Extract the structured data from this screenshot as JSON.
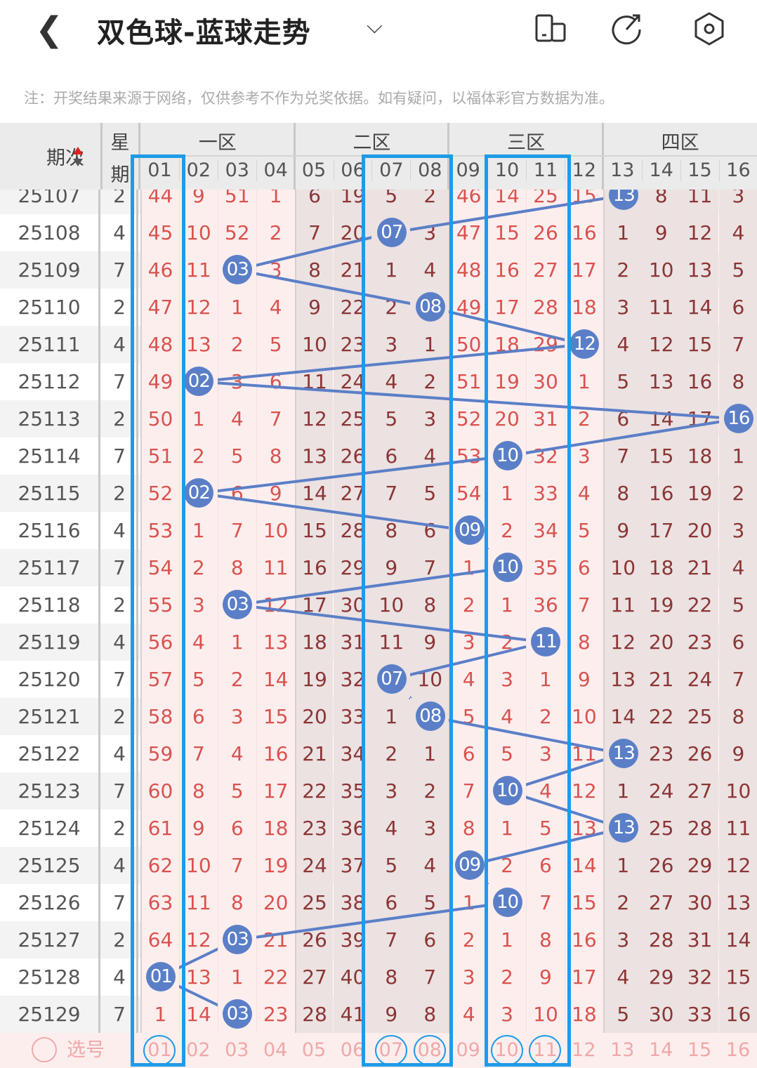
{
  "header": {
    "title": "双色球-蓝球走势",
    "note": "注：开奖结果来源于网络，仅供参考不作为兑奖依据。如有疑问，以福体彩官方数据为准。",
    "icons": [
      "back-icon",
      "chevron-down-icon",
      "phone-layout-icon",
      "share-icon",
      "settings-icon"
    ]
  },
  "table": {
    "period_label": "期次",
    "weekday_label_1": "星",
    "weekday_label_2": "期",
    "zones": [
      "一区",
      "二区",
      "三区",
      "四区"
    ],
    "numbers": [
      "01",
      "02",
      "03",
      "04",
      "05",
      "06",
      "07",
      "08",
      "09",
      "10",
      "11",
      "12",
      "13",
      "14",
      "15",
      "16"
    ],
    "rows": [
      {
        "period": "25107",
        "weekday": "2",
        "values": [
          44,
          9,
          51,
          1,
          6,
          19,
          5,
          2,
          46,
          14,
          25,
          15,
          "13",
          8,
          11,
          3
        ]
      },
      {
        "period": "25108",
        "weekday": "4",
        "values": [
          45,
          10,
          52,
          2,
          7,
          20,
          "07",
          3,
          47,
          15,
          26,
          16,
          1,
          9,
          12,
          4
        ]
      },
      {
        "period": "25109",
        "weekday": "7",
        "values": [
          46,
          11,
          "03",
          3,
          8,
          21,
          1,
          4,
          48,
          16,
          27,
          17,
          2,
          10,
          13,
          5
        ]
      },
      {
        "period": "25110",
        "weekday": "2",
        "values": [
          47,
          12,
          1,
          4,
          9,
          22,
          2,
          "08",
          49,
          17,
          28,
          18,
          3,
          11,
          14,
          6
        ]
      },
      {
        "period": "25111",
        "weekday": "4",
        "values": [
          48,
          13,
          2,
          5,
          10,
          23,
          3,
          1,
          50,
          18,
          29,
          "12",
          4,
          12,
          15,
          7
        ]
      },
      {
        "period": "25112",
        "weekday": "7",
        "values": [
          49,
          "02",
          3,
          6,
          11,
          24,
          4,
          2,
          51,
          19,
          30,
          1,
          5,
          13,
          16,
          8
        ]
      },
      {
        "period": "25113",
        "weekday": "2",
        "values": [
          50,
          1,
          4,
          7,
          12,
          25,
          5,
          3,
          52,
          20,
          31,
          2,
          6,
          14,
          17,
          "16"
        ]
      },
      {
        "period": "25114",
        "weekday": "7",
        "values": [
          51,
          2,
          5,
          8,
          13,
          26,
          6,
          4,
          53,
          "10",
          32,
          3,
          7,
          15,
          18,
          1
        ]
      },
      {
        "period": "25115",
        "weekday": "2",
        "values": [
          52,
          "02",
          6,
          9,
          14,
          27,
          7,
          5,
          54,
          1,
          33,
          4,
          8,
          16,
          19,
          2
        ]
      },
      {
        "period": "25116",
        "weekday": "4",
        "values": [
          53,
          1,
          7,
          10,
          15,
          28,
          8,
          6,
          "09",
          2,
          34,
          5,
          9,
          17,
          20,
          3
        ]
      },
      {
        "period": "25117",
        "weekday": "7",
        "values": [
          54,
          2,
          8,
          11,
          16,
          29,
          9,
          7,
          1,
          "10",
          35,
          6,
          10,
          18,
          21,
          4
        ]
      },
      {
        "period": "25118",
        "weekday": "2",
        "values": [
          55,
          3,
          "03",
          12,
          17,
          30,
          10,
          8,
          2,
          1,
          36,
          7,
          11,
          19,
          22,
          5
        ]
      },
      {
        "period": "25119",
        "weekday": "4",
        "values": [
          56,
          4,
          1,
          13,
          18,
          31,
          11,
          9,
          3,
          2,
          "11",
          8,
          12,
          20,
          23,
          6
        ]
      },
      {
        "period": "25120",
        "weekday": "7",
        "values": [
          57,
          5,
          2,
          14,
          19,
          32,
          "07",
          10,
          4,
          3,
          1,
          9,
          13,
          21,
          24,
          7
        ]
      },
      {
        "period": "25121",
        "weekday": "2",
        "values": [
          58,
          6,
          3,
          15,
          20,
          33,
          1,
          "08",
          5,
          4,
          2,
          10,
          14,
          22,
          25,
          8
        ]
      },
      {
        "period": "25122",
        "weekday": "4",
        "values": [
          59,
          7,
          4,
          16,
          21,
          34,
          2,
          1,
          6,
          5,
          3,
          11,
          "13",
          23,
          26,
          9
        ]
      },
      {
        "period": "25123",
        "weekday": "7",
        "values": [
          60,
          8,
          5,
          17,
          22,
          35,
          3,
          2,
          7,
          "10",
          4,
          12,
          1,
          24,
          27,
          10
        ]
      },
      {
        "period": "25124",
        "weekday": "2",
        "values": [
          61,
          9,
          6,
          18,
          23,
          36,
          4,
          3,
          8,
          1,
          5,
          13,
          "13",
          25,
          28,
          11
        ]
      },
      {
        "period": "25125",
        "weekday": "4",
        "values": [
          62,
          10,
          7,
          19,
          24,
          37,
          5,
          4,
          "09",
          2,
          6,
          14,
          1,
          26,
          29,
          12
        ]
      },
      {
        "period": "25126",
        "weekday": "7",
        "values": [
          63,
          11,
          8,
          20,
          25,
          38,
          6,
          5,
          1,
          "10",
          7,
          15,
          2,
          27,
          30,
          13
        ]
      },
      {
        "period": "25127",
        "weekday": "2",
        "values": [
          64,
          12,
          "03",
          21,
          26,
          39,
          7,
          6,
          2,
          1,
          8,
          16,
          3,
          28,
          31,
          14
        ]
      },
      {
        "period": "25128",
        "weekday": "4",
        "values": [
          "01",
          13,
          1,
          22,
          27,
          40,
          8,
          7,
          3,
          2,
          9,
          17,
          4,
          29,
          32,
          15
        ]
      },
      {
        "period": "25129",
        "weekday": "7",
        "values": [
          1,
          14,
          "03",
          23,
          28,
          41,
          9,
          8,
          4,
          3,
          10,
          18,
          5,
          30,
          33,
          16
        ]
      }
    ],
    "select_label": "选号",
    "selected": [
      "01",
      "07",
      "08",
      "10",
      "11"
    ]
  },
  "colors": {
    "ball": "#5b7fc7",
    "frame": "#1e9be8",
    "zone_light": "#fdeeee",
    "zone_dark": "#ece2e2",
    "text_light_zone": "#d9534f",
    "text_dark_zone": "#8b3535"
  }
}
